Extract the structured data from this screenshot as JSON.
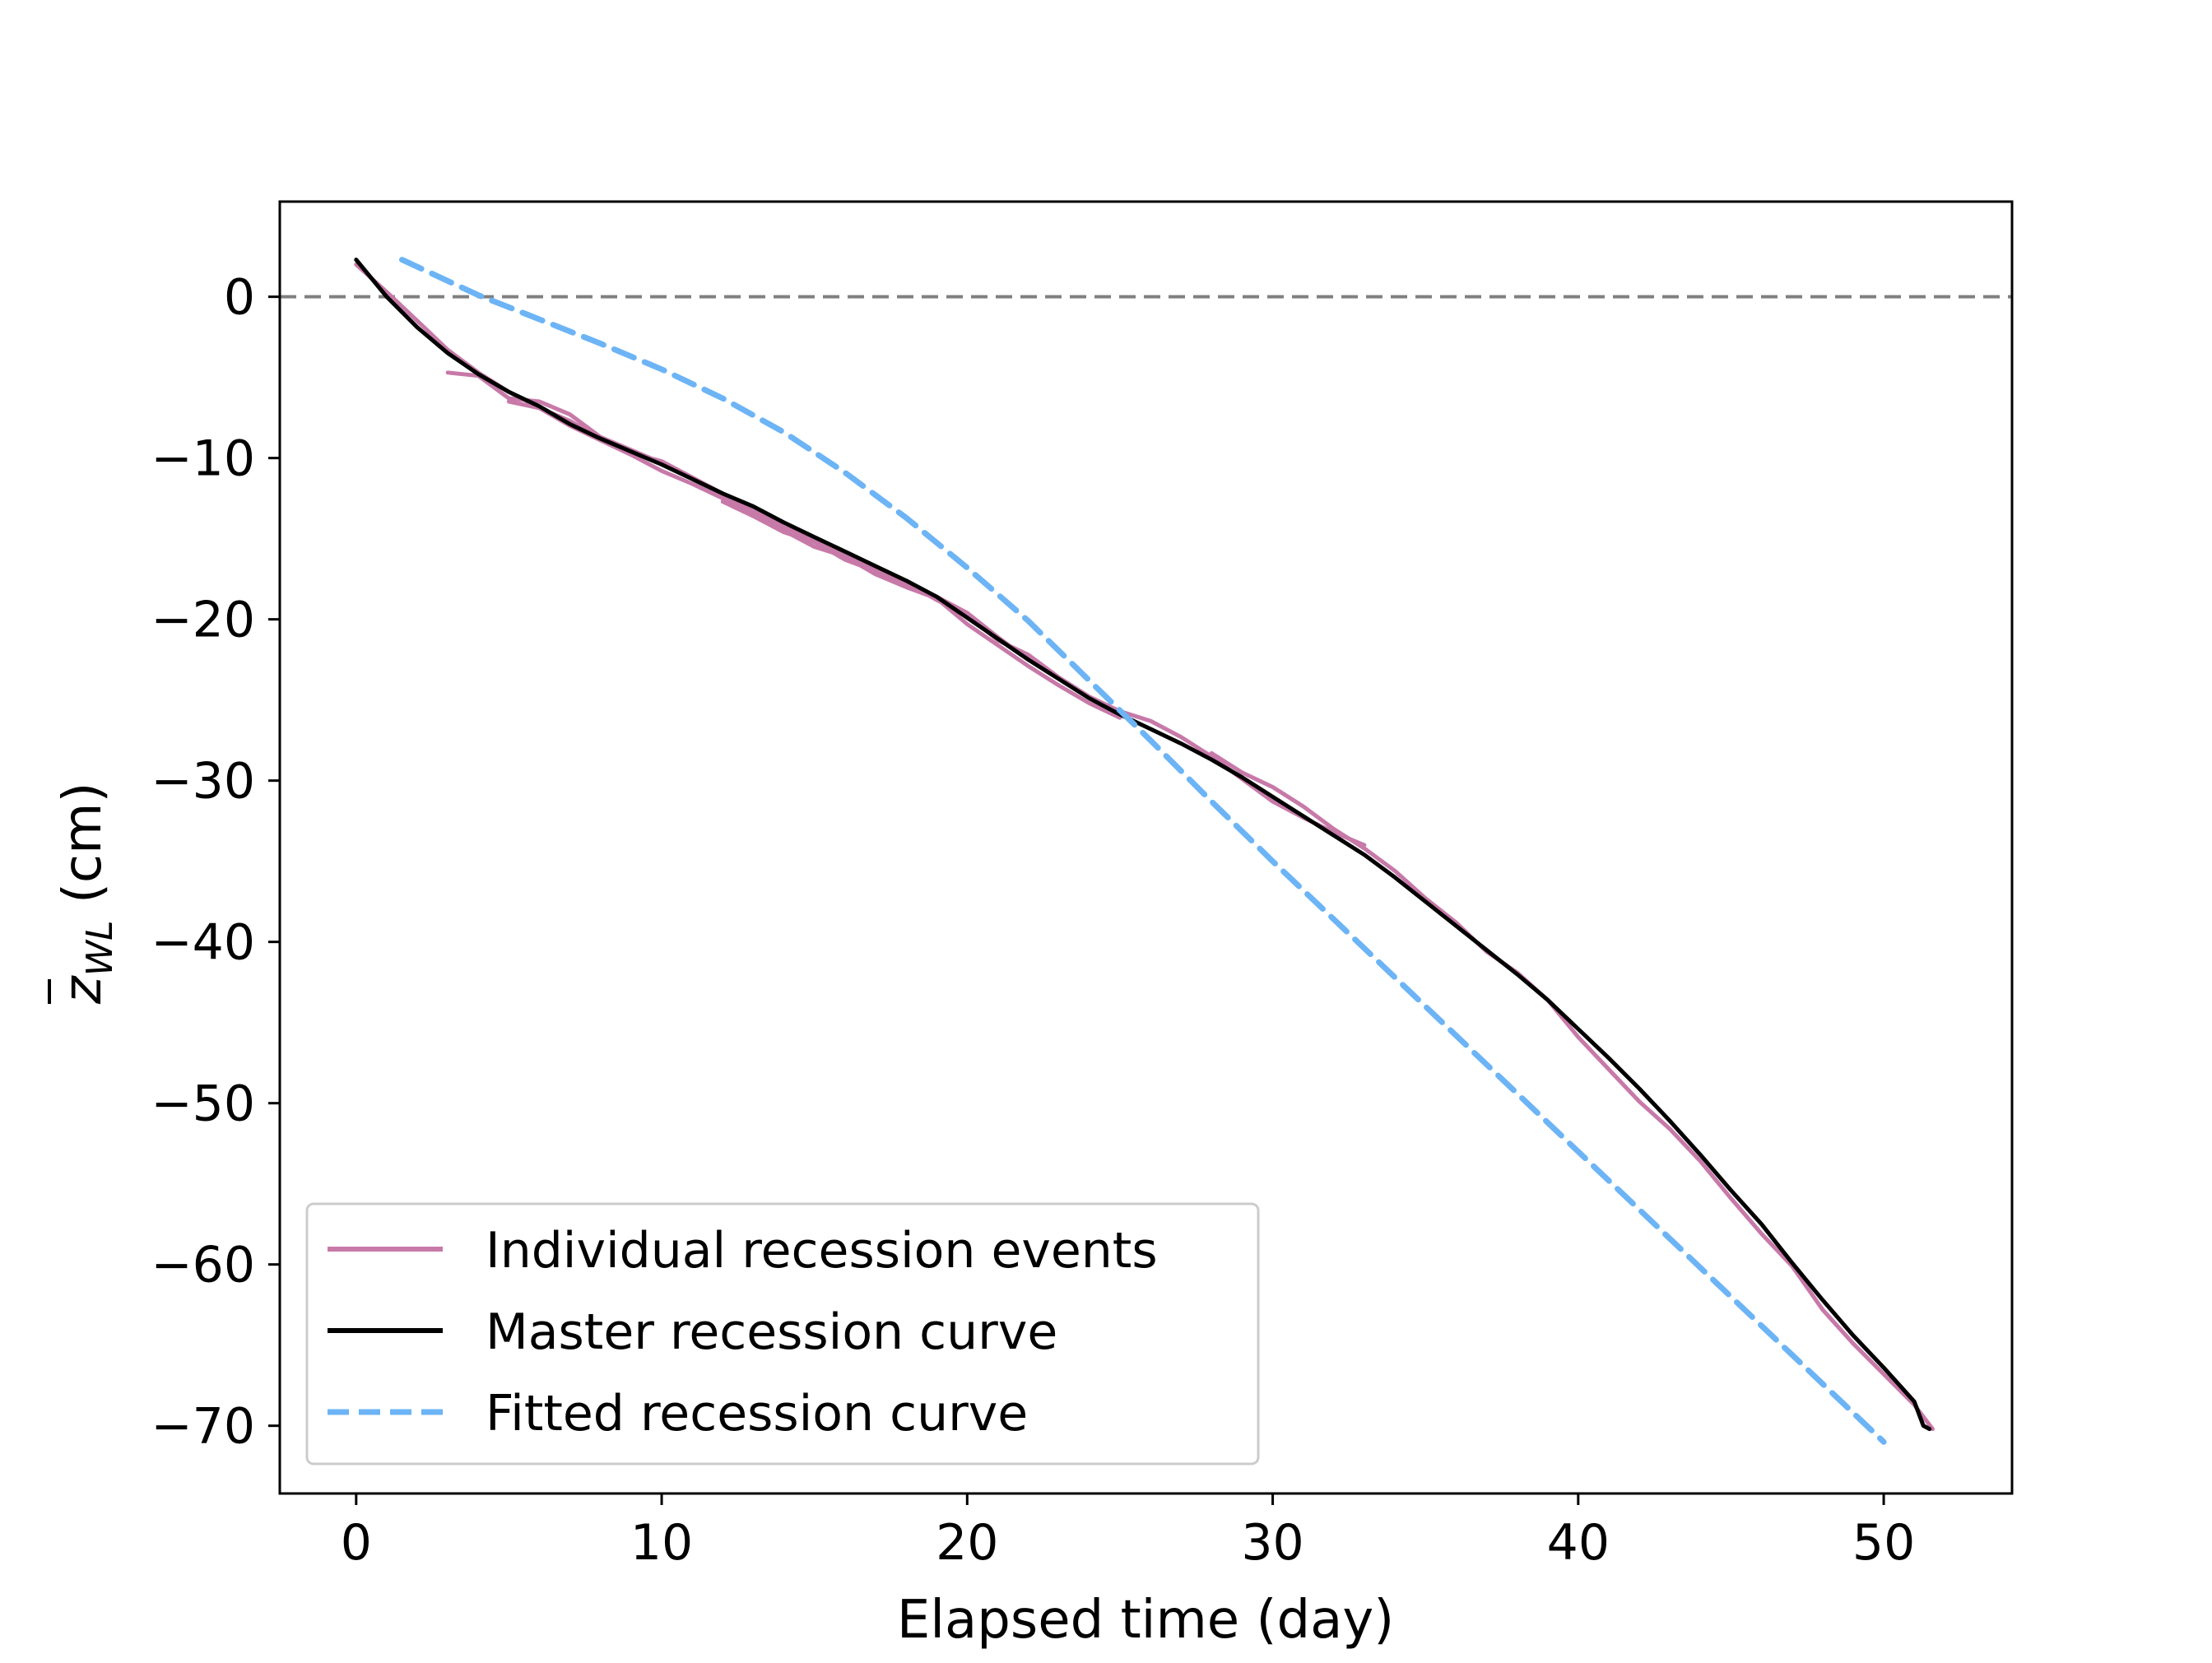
{
  "chart_data": {
    "type": "line",
    "title": "",
    "xlabel": "Elapsed time (day)",
    "ylabel": {
      "prefix": "z",
      "subscript": "WL",
      "suffix": " (cm)"
    },
    "xlim": [
      -2.5,
      54.2
    ],
    "ylim": [
      -74.2,
      5.9
    ],
    "x_ticks": [
      0,
      10,
      20,
      30,
      40,
      50
    ],
    "y_ticks": [
      0,
      -10,
      -20,
      -30,
      -40,
      -50,
      -60,
      -70
    ],
    "x_tick_labels": [
      "0",
      "10",
      "20",
      "30",
      "40",
      "50"
    ],
    "y_tick_labels": [
      "0",
      "−10",
      "−20",
      "−30",
      "−40",
      "−50",
      "−60",
      "−70"
    ],
    "reference_line": {
      "y": 0,
      "style": "dashed",
      "color": "#808080"
    },
    "grid": false,
    "legend": {
      "position": "lower-left",
      "entries": [
        "Individual recession events",
        "Master recession curve",
        "Fitted recession curve"
      ]
    },
    "series": [
      {
        "name": "Individual recession events",
        "color": "#c779a8",
        "style": "solid",
        "segments": [
          {
            "x": [
              0,
              1,
              2,
              3,
              4,
              5,
              6,
              7,
              8,
              9,
              10,
              11,
              12,
              13,
              14
            ],
            "y": [
              2.0,
              0.3,
              -1.5,
              -3.3,
              -4.7,
              -5.9,
              -6.9,
              -8.0,
              -8.9,
              -9.8,
              -10.8,
              -11.6,
              -12.5,
              -13.4,
              -14.3
            ]
          },
          {
            "x": [
              3,
              4,
              5,
              6,
              7,
              8,
              9,
              10,
              11,
              12,
              13,
              14,
              15,
              16,
              17,
              18,
              19,
              20,
              21,
              22
            ],
            "y": [
              -4.7,
              -4.9,
              -6.3,
              -6.5,
              -7.3,
              -8.7,
              -9.5,
              -10.3,
              -11.3,
              -12.3,
              -13.1,
              -14.3,
              -15.0,
              -16.0,
              -16.9,
              -17.8,
              -18.6,
              -19.6,
              -21.1,
              -22.5
            ]
          },
          {
            "x": [
              5,
              6,
              7,
              8,
              9,
              10,
              11,
              12,
              13,
              14,
              15,
              16,
              17,
              18,
              19,
              20,
              21,
              22,
              23,
              24,
              25
            ],
            "y": [
              -6.5,
              -6.9,
              -7.7,
              -8.8,
              -9.7,
              -10.2,
              -11.2,
              -12.2,
              -13.4,
              -14.5,
              -15.5,
              -16.1,
              -17.2,
              -18.0,
              -18.7,
              -20.3,
              -21.6,
              -22.9,
              -24.1,
              -25.2,
              -26.1
            ]
          },
          {
            "x": [
              12,
              13,
              14,
              15,
              16,
              17,
              18,
              19,
              20,
              21,
              22,
              23,
              24,
              25,
              26,
              27,
              28,
              29,
              30,
              31,
              32,
              33
            ],
            "y": [
              -12.7,
              -13.6,
              -14.6,
              -15.2,
              -16.3,
              -17.0,
              -17.7,
              -18.8,
              -19.7,
              -21.3,
              -22.2,
              -23.6,
              -24.8,
              -25.7,
              -26.3,
              -27.3,
              -28.5,
              -29.9,
              -31.3,
              -32.3,
              -33.2,
              -34.0
            ]
          },
          {
            "x": [
              28,
              29,
              30,
              31,
              32,
              33,
              34,
              35,
              36,
              37,
              38,
              39,
              40,
              41,
              42,
              43,
              44,
              45,
              46,
              47,
              48,
              49,
              50,
              51,
              51.6
            ],
            "y": [
              -28.3,
              -29.5,
              -30.4,
              -31.6,
              -33.0,
              -34.2,
              -35.6,
              -37.3,
              -38.8,
              -40.6,
              -41.9,
              -43.6,
              -45.9,
              -47.9,
              -49.9,
              -51.6,
              -53.6,
              -55.9,
              -58.1,
              -60.1,
              -62.8,
              -64.9,
              -66.8,
              -68.7,
              -70.2
            ]
          }
        ]
      },
      {
        "name": "Master recession curve",
        "color": "#000000",
        "style": "solid",
        "x": [
          0,
          1,
          2,
          3,
          4,
          5,
          6,
          7,
          8,
          9,
          10,
          11,
          12,
          13,
          14,
          15,
          16,
          17,
          18,
          19,
          20,
          21,
          22,
          23,
          24,
          25,
          26,
          27,
          28,
          29,
          30,
          31,
          32,
          33,
          34,
          35,
          36,
          37,
          38,
          39,
          40,
          41,
          42,
          43,
          44,
          45,
          46,
          47,
          48,
          49,
          50,
          51,
          51.3,
          51.5
        ],
        "y": [
          2.3,
          0.0,
          -1.9,
          -3.5,
          -4.8,
          -5.9,
          -6.8,
          -7.9,
          -8.8,
          -9.6,
          -10.4,
          -11.3,
          -12.2,
          -13.0,
          -14.0,
          -14.9,
          -15.8,
          -16.7,
          -17.6,
          -18.6,
          -19.9,
          -21.2,
          -22.5,
          -23.7,
          -24.9,
          -25.9,
          -26.8,
          -27.7,
          -28.7,
          -29.8,
          -31.0,
          -32.2,
          -33.4,
          -34.6,
          -36.0,
          -37.5,
          -39.0,
          -40.5,
          -42.0,
          -43.6,
          -45.4,
          -47.2,
          -49.1,
          -51.1,
          -53.2,
          -55.4,
          -57.5,
          -59.9,
          -62.2,
          -64.4,
          -66.4,
          -68.5,
          -70.0,
          -70.2
        ]
      },
      {
        "name": "Fitted recession curve",
        "color": "#6cb4f5",
        "style": "dashed",
        "x": [
          1.5,
          4,
          6,
          8,
          10,
          12,
          14,
          16,
          18,
          20,
          22,
          24,
          26,
          28,
          30,
          32,
          34,
          36,
          38,
          40,
          42,
          44,
          46,
          48,
          50
        ],
        "y": [
          2.3,
          0.1,
          -1.4,
          -2.9,
          -4.5,
          -6.3,
          -8.4,
          -10.9,
          -13.7,
          -16.8,
          -20.1,
          -23.8,
          -27.5,
          -31.3,
          -35.0,
          -38.6,
          -42.2,
          -45.8,
          -49.4,
          -53.0,
          -56.6,
          -60.2,
          -63.8,
          -67.4,
          -71.0
        ]
      }
    ]
  }
}
